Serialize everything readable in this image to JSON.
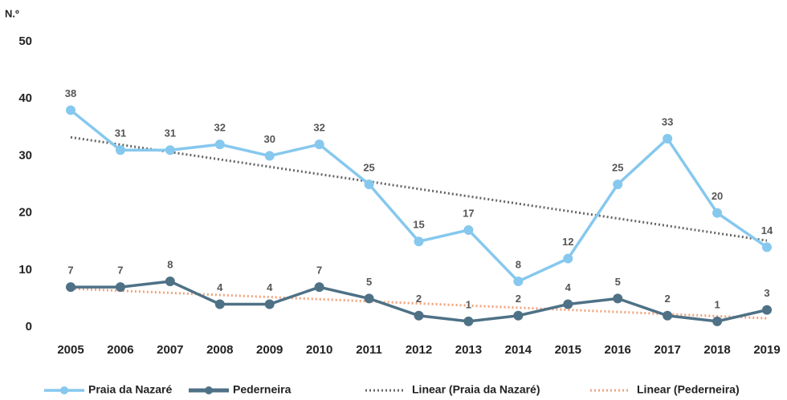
{
  "chart_data": {
    "type": "line",
    "y_label": "N.º",
    "x": [
      "2005",
      "2006",
      "2007",
      "2008",
      "2009",
      "2010",
      "2011",
      "2012",
      "2013",
      "2014",
      "2015",
      "2016",
      "2017",
      "2018",
      "2019"
    ],
    "series": [
      {
        "name": "Praia da Nazaré",
        "color": "#86c8ee",
        "values": [
          38,
          31,
          31,
          32,
          30,
          32,
          25,
          15,
          17,
          8,
          12,
          25,
          33,
          20,
          14
        ]
      },
      {
        "name": "Pederneira",
        "color": "#4e7186",
        "values": [
          7,
          7,
          8,
          4,
          4,
          7,
          5,
          2,
          1,
          2,
          4,
          5,
          2,
          1,
          3
        ]
      }
    ],
    "trendlines": [
      {
        "name": "Linear (Praia da Nazaré)",
        "color": "#666666",
        "series": 0
      },
      {
        "name": "Linear (Pederneira)",
        "color": "#f0a47e",
        "series": 1
      }
    ],
    "ylim": [
      0,
      50
    ],
    "yticks": [
      0,
      10,
      20,
      30,
      40,
      50
    ],
    "grid": false
  }
}
